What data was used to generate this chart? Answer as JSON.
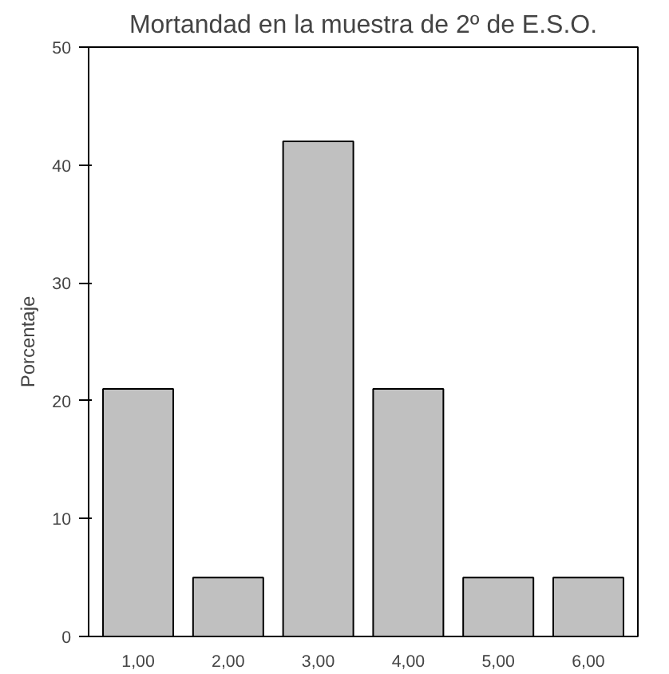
{
  "chart_data": {
    "type": "bar",
    "title": "Mortandad en la muestra de 2º de E.S.O.",
    "ylabel": "Porcentaje",
    "categories": [
      "1,00",
      "2,00",
      "3,00",
      "4,00",
      "5,00",
      "6,00"
    ],
    "values": [
      21,
      5,
      42,
      21,
      5,
      5
    ],
    "color": "#c0c0c0",
    "ylim": [
      0,
      50
    ],
    "yticks": [
      0,
      10,
      20,
      30,
      40,
      50
    ],
    "grid": false
  }
}
